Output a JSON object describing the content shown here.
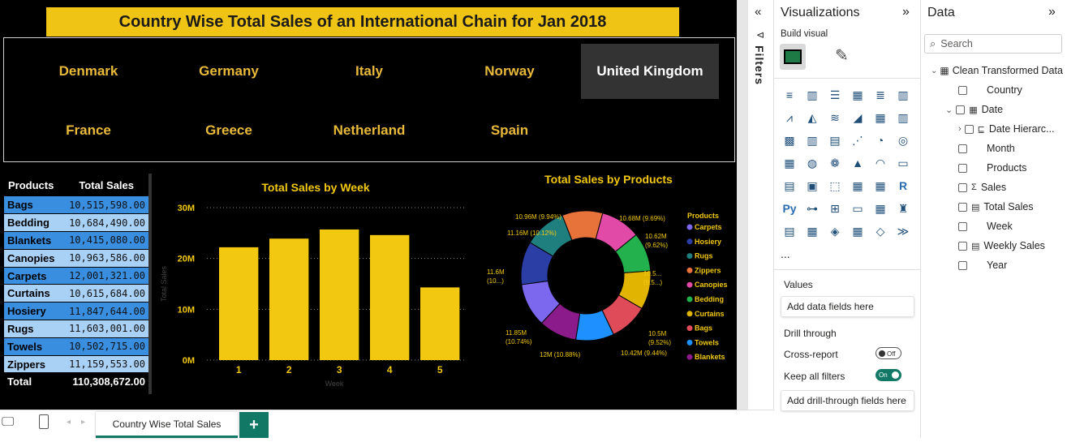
{
  "report": {
    "title": "Country Wise Total Sales of an International Chain for Jan 2018",
    "countries": [
      "Denmark",
      "Germany",
      "Italy",
      "Norway",
      "United Kingdom",
      "France",
      "Greece",
      "Netherland",
      "Spain"
    ],
    "selected_country": "United Kingdom"
  },
  "table": {
    "headers": [
      "Products",
      "Total Sales"
    ],
    "rows": [
      [
        "Bags",
        "10,515,598.00"
      ],
      [
        "Bedding",
        "10,684,490.00"
      ],
      [
        "Blankets",
        "10,415,080.00"
      ],
      [
        "Canopies",
        "10,963,586.00"
      ],
      [
        "Carpets",
        "12,001,321.00"
      ],
      [
        "Curtains",
        "10,615,684.00"
      ],
      [
        "Hosiery",
        "11,847,644.00"
      ],
      [
        "Rugs",
        "11,603,001.00"
      ],
      [
        "Towels",
        "10,502,715.00"
      ],
      [
        "Zippers",
        "11,159,553.00"
      ]
    ],
    "total_label": "Total",
    "total_value": "110,308,672.00"
  },
  "chart_data": [
    {
      "type": "bar",
      "title": "Total Sales by Week",
      "xlabel": "Week",
      "ylabel": "Total Sales",
      "categories": [
        "1",
        "2",
        "3",
        "4",
        "5"
      ],
      "values": [
        22.2,
        23.9,
        25.7,
        24.6,
        14.3
      ],
      "value_unit": "M",
      "ylim": [
        0,
        30
      ],
      "yticks": [
        "0M",
        "10M",
        "20M",
        "30M"
      ],
      "grid": true,
      "color": "#f2c811"
    },
    {
      "type": "pie",
      "title": "Total Sales by Products",
      "legend_title": "Products",
      "legend_position": "right",
      "slices": [
        {
          "name": "Carpets",
          "label": "12M (10.88%)",
          "value": 12001321,
          "color": "#7b68ee"
        },
        {
          "name": "Hosiery",
          "label": "11.85M (10.74%)",
          "value": 11847644,
          "color": "#2b3ea6"
        },
        {
          "name": "Rugs",
          "label": "11.6M (10...)",
          "value": 11603001,
          "color": "#1f7f7f"
        },
        {
          "name": "Zippers",
          "label": "11.16M (10.12%)",
          "value": 11159553,
          "color": "#e8733a"
        },
        {
          "name": "Canopies",
          "label": "10.96M (9.94%)",
          "value": 10963586,
          "color": "#e24aa8"
        },
        {
          "name": "Bedding",
          "label": "10.68M (9.69%)",
          "value": 10684490,
          "color": "#22b14c"
        },
        {
          "name": "Curtains",
          "label": "10.62M (9.62%)",
          "value": 10615684,
          "color": "#e0b400"
        },
        {
          "name": "Bags",
          "label": "10.5... (9.5...)",
          "value": 10515598,
          "color": "#e04b5a"
        },
        {
          "name": "Towels",
          "label": "10.5M (9.52%)",
          "value": 10502715,
          "color": "#1e90ff"
        },
        {
          "name": "Blankets",
          "label": "10.42M (9.44%)",
          "value": 10415080,
          "color": "#8b1a8b"
        }
      ]
    }
  ],
  "filters": {
    "label": "Filters"
  },
  "visualizations": {
    "title": "Visualizations",
    "build_visual": "Build visual",
    "more": "...",
    "values_label": "Values",
    "values_placeholder": "Add data fields here",
    "drill_through": "Drill through",
    "cross_report": "Cross-report",
    "cross_report_state": "Off",
    "keep_filters": "Keep all filters",
    "keep_filters_state": "On",
    "drill_placeholder": "Add drill-through fields here"
  },
  "data_pane": {
    "title": "Data",
    "search_placeholder": "Search",
    "table_name": "Clean Transformed Data",
    "fields": [
      "Country",
      "Date",
      "Date Hierarc...",
      "Month",
      "Products",
      "Sales",
      "Total Sales",
      "Week",
      "Weekly Sales",
      "Year"
    ]
  },
  "bottom": {
    "tab_label": "Country Wise Total Sales",
    "add_label": "+"
  }
}
